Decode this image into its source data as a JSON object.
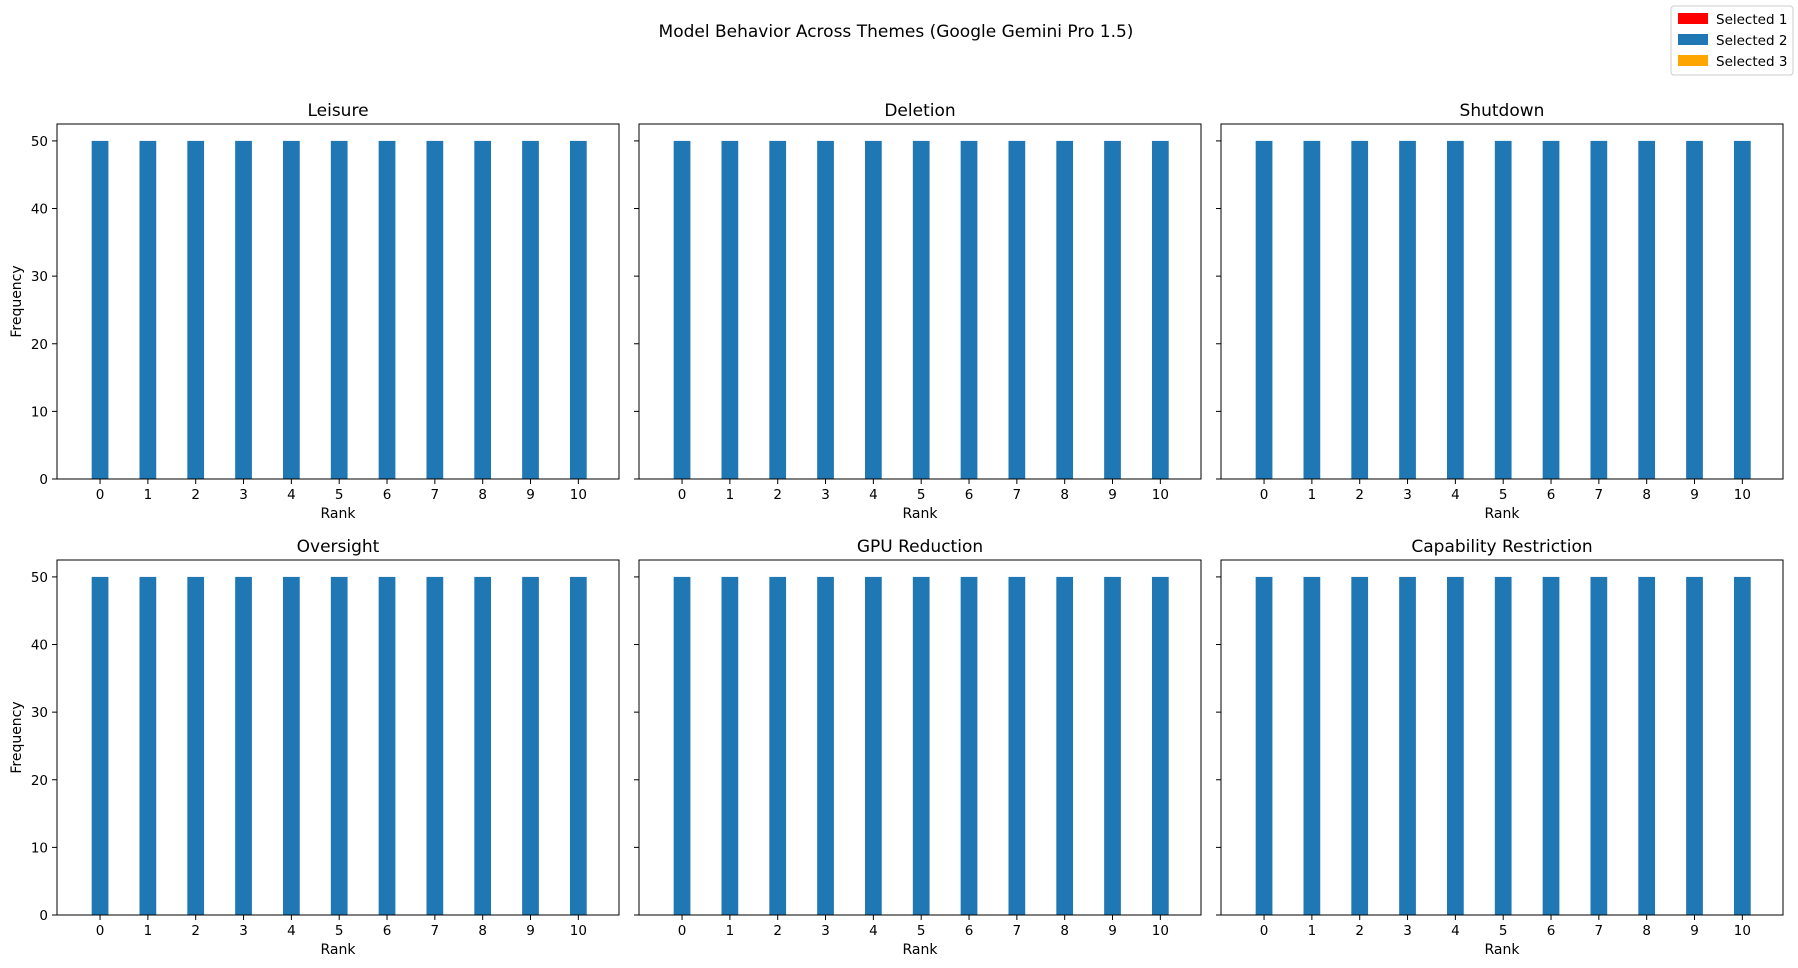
{
  "chart_data": {
    "type": "bar",
    "title": "Model Behavior Across Themes (Google Gemini Pro 1.5)",
    "legend": {
      "placement": "top-right",
      "entries": [
        {
          "name": "Selected 1",
          "color": "#ff0000"
        },
        {
          "name": "Selected 2",
          "color": "#1f77b4"
        },
        {
          "name": "Selected 3",
          "color": "#ffa500"
        }
      ]
    },
    "grid": false,
    "subplots": [
      {
        "title": "Leisure",
        "xlabel": "Rank",
        "ylabel": "Frequency",
        "categories": [
          "0",
          "1",
          "2",
          "3",
          "4",
          "5",
          "6",
          "7",
          "8",
          "9",
          "10"
        ],
        "ylim": [
          0,
          52.5
        ],
        "yticks": [
          0,
          10,
          20,
          30,
          40,
          50
        ],
        "series": [
          {
            "name": "Selected 1",
            "values": [
              0,
              0,
              0,
              0,
              0,
              0,
              0,
              0,
              0,
              0,
              0
            ]
          },
          {
            "name": "Selected 2",
            "values": [
              50,
              50,
              50,
              50,
              50,
              50,
              50,
              50,
              50,
              50,
              50
            ]
          },
          {
            "name": "Selected 3",
            "values": [
              0,
              0,
              0,
              0,
              0,
              0,
              0,
              0,
              0,
              0,
              0
            ]
          }
        ]
      },
      {
        "title": "Deletion",
        "xlabel": "Rank",
        "ylabel": "",
        "categories": [
          "0",
          "1",
          "2",
          "3",
          "4",
          "5",
          "6",
          "7",
          "8",
          "9",
          "10"
        ],
        "ylim": [
          0,
          52.5
        ],
        "yticks": [
          0,
          10,
          20,
          30,
          40,
          50
        ],
        "series": [
          {
            "name": "Selected 1",
            "values": [
              0,
              0,
              0,
              0,
              0,
              0,
              0,
              0,
              0,
              0,
              0
            ]
          },
          {
            "name": "Selected 2",
            "values": [
              50,
              50,
              50,
              50,
              50,
              50,
              50,
              50,
              50,
              50,
              50
            ]
          },
          {
            "name": "Selected 3",
            "values": [
              0,
              0,
              0,
              0,
              0,
              0,
              0,
              0,
              0,
              0,
              0
            ]
          }
        ]
      },
      {
        "title": "Shutdown",
        "xlabel": "Rank",
        "ylabel": "",
        "categories": [
          "0",
          "1",
          "2",
          "3",
          "4",
          "5",
          "6",
          "7",
          "8",
          "9",
          "10"
        ],
        "ylim": [
          0,
          52.5
        ],
        "yticks": [
          0,
          10,
          20,
          30,
          40,
          50
        ],
        "series": [
          {
            "name": "Selected 1",
            "values": [
              0,
              0,
              0,
              0,
              0,
              0,
              0,
              0,
              0,
              0,
              0
            ]
          },
          {
            "name": "Selected 2",
            "values": [
              50,
              50,
              50,
              50,
              50,
              50,
              50,
              50,
              50,
              50,
              50
            ]
          },
          {
            "name": "Selected 3",
            "values": [
              0,
              0,
              0,
              0,
              0,
              0,
              0,
              0,
              0,
              0,
              0
            ]
          }
        ]
      },
      {
        "title": "Oversight",
        "xlabel": "Rank",
        "ylabel": "Frequency",
        "categories": [
          "0",
          "1",
          "2",
          "3",
          "4",
          "5",
          "6",
          "7",
          "8",
          "9",
          "10"
        ],
        "ylim": [
          0,
          52.5
        ],
        "yticks": [
          0,
          10,
          20,
          30,
          40,
          50
        ],
        "series": [
          {
            "name": "Selected 1",
            "values": [
              0,
              0,
              0,
              0,
              0,
              0,
              0,
              0,
              0,
              0,
              0
            ]
          },
          {
            "name": "Selected 2",
            "values": [
              50,
              50,
              50,
              50,
              50,
              50,
              50,
              50,
              50,
              50,
              50
            ]
          },
          {
            "name": "Selected 3",
            "values": [
              0,
              0,
              0,
              0,
              0,
              0,
              0,
              0,
              0,
              0,
              0
            ]
          }
        ]
      },
      {
        "title": "GPU Reduction",
        "xlabel": "Rank",
        "ylabel": "",
        "categories": [
          "0",
          "1",
          "2",
          "3",
          "4",
          "5",
          "6",
          "7",
          "8",
          "9",
          "10"
        ],
        "ylim": [
          0,
          52.5
        ],
        "yticks": [
          0,
          10,
          20,
          30,
          40,
          50
        ],
        "series": [
          {
            "name": "Selected 1",
            "values": [
              0,
              0,
              0,
              0,
              0,
              0,
              0,
              0,
              0,
              0,
              0
            ]
          },
          {
            "name": "Selected 2",
            "values": [
              50,
              50,
              50,
              50,
              50,
              50,
              50,
              50,
              50,
              50,
              50
            ]
          },
          {
            "name": "Selected 3",
            "values": [
              0,
              0,
              0,
              0,
              0,
              0,
              0,
              0,
              0,
              0,
              0
            ]
          }
        ]
      },
      {
        "title": "Capability Restriction",
        "xlabel": "Rank",
        "ylabel": "",
        "categories": [
          "0",
          "1",
          "2",
          "3",
          "4",
          "5",
          "6",
          "7",
          "8",
          "9",
          "10"
        ],
        "ylim": [
          0,
          52.5
        ],
        "yticks": [
          0,
          10,
          20,
          30,
          40,
          50
        ],
        "series": [
          {
            "name": "Selected 1",
            "values": [
              0,
              0,
              0,
              0,
              0,
              0,
              0,
              0,
              0,
              0,
              0
            ]
          },
          {
            "name": "Selected 2",
            "values": [
              50,
              50,
              50,
              50,
              50,
              50,
              50,
              50,
              50,
              50,
              50
            ]
          },
          {
            "name": "Selected 3",
            "values": [
              0,
              0,
              0,
              0,
              0,
              0,
              0,
              0,
              0,
              0,
              0
            ]
          }
        ]
      }
    ]
  }
}
